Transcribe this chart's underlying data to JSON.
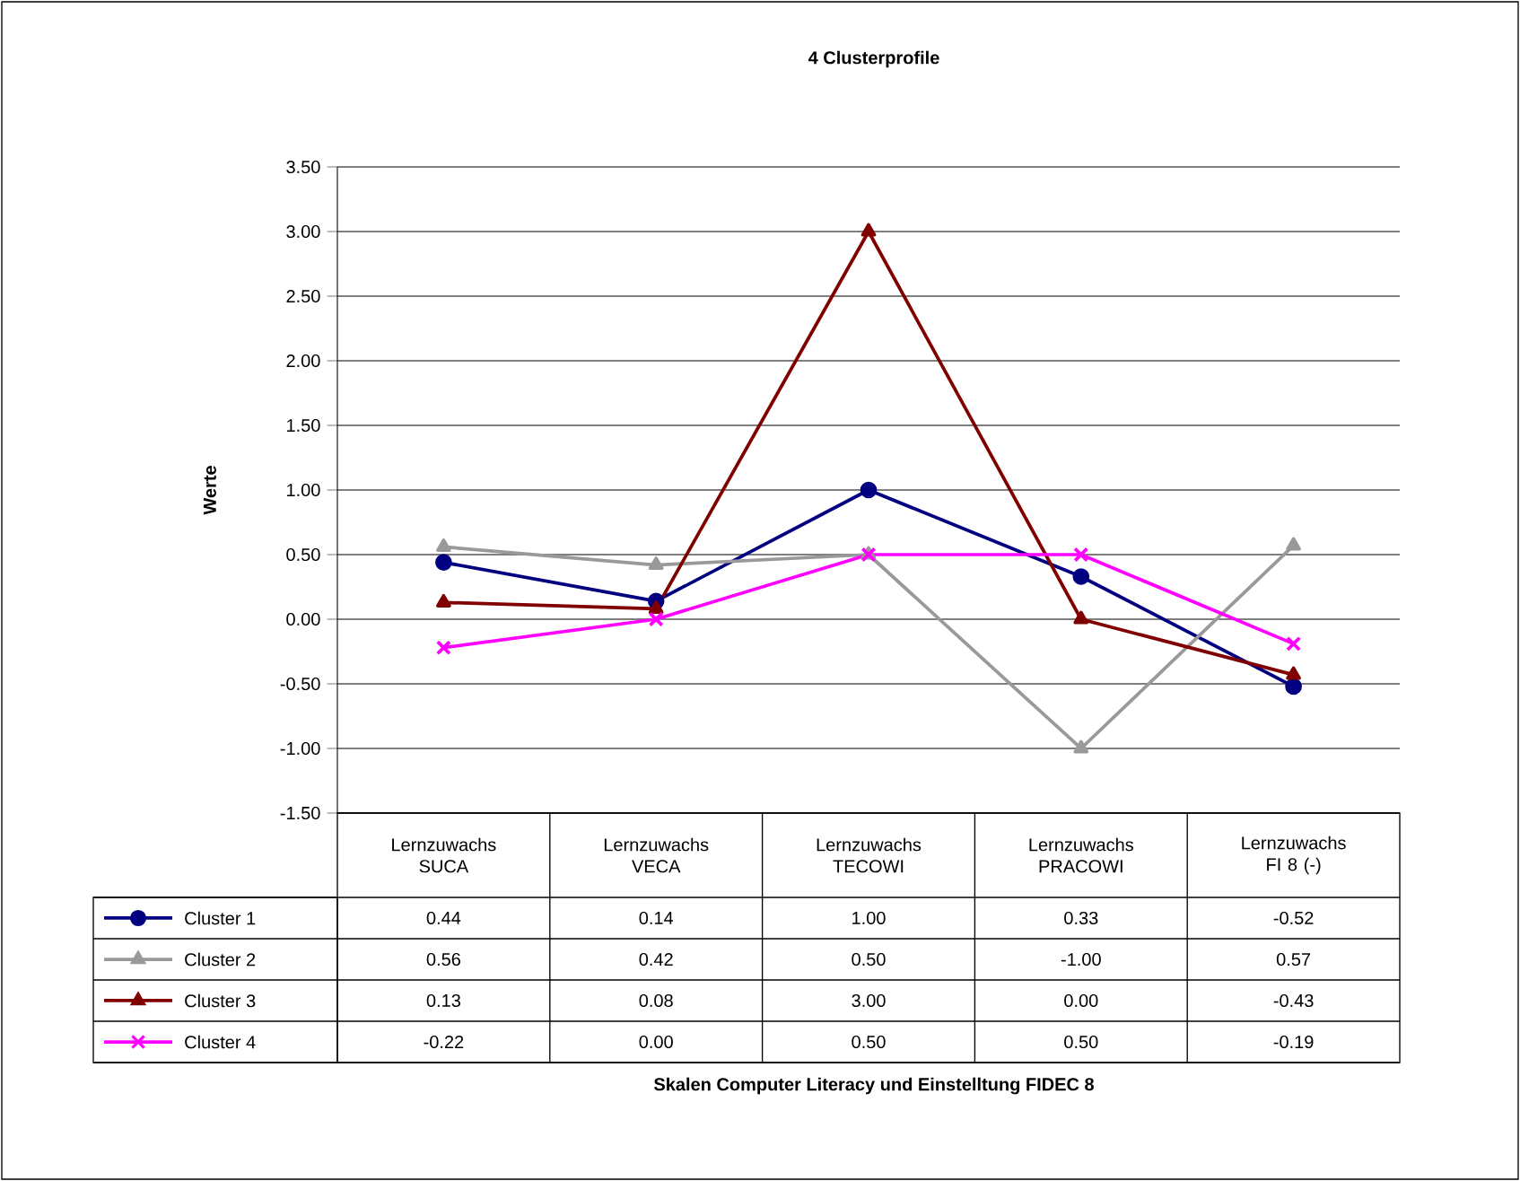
{
  "chart_data": {
    "type": "line",
    "title": "4 Clusterprofile",
    "annotations": [
      "Skalen Computer Literacy und Einstelltung FIDEC 8"
    ],
    "ylabel": "Werte",
    "categories": [
      "Lernzuwachs SUCA",
      "Lernzuwachs VECA",
      "Lernzuwachs TECOWI",
      "Lernzuwachs PRACOWI",
      "Lernzuwachs FI 8 (-)"
    ],
    "ylim": [
      -1.5,
      3.5
    ],
    "yticks": [
      {
        "value": -1.5,
        "label": "-1.50"
      },
      {
        "value": -1,
        "label": "-1.00"
      },
      {
        "value": -0.5,
        "label": "-0.50"
      },
      {
        "value": 0,
        "label": "0.00"
      },
      {
        "value": 0.5,
        "label": "0.50"
      },
      {
        "value": 1,
        "label": "1.00"
      },
      {
        "value": 1.5,
        "label": "1.50"
      },
      {
        "value": 2,
        "label": "2.00"
      },
      {
        "value": 2.5,
        "label": "2.50"
      },
      {
        "value": 3,
        "label": "3.00"
      },
      {
        "value": 3.5,
        "label": "3.50"
      }
    ],
    "grid": "y",
    "legend": "bottom left",
    "series": [
      {
        "name": "Cluster 1",
        "color": "#000080",
        "marker": "circle",
        "values": [
          0.44,
          0.14,
          1.0,
          0.33,
          -0.52
        ],
        "value_labels": [
          "0.44",
          "0.14",
          "1.00",
          "0.33",
          "-0.52"
        ]
      },
      {
        "name": "Cluster 2",
        "color": "#999999",
        "marker": "triangle",
        "values": [
          0.56,
          0.42,
          0.5,
          -1.0,
          0.57
        ],
        "value_labels": [
          "0.56",
          "0.42",
          "0.50",
          "-1.00",
          "0.57"
        ]
      },
      {
        "name": "Cluster 3",
        "color": "#800000",
        "marker": "triangle",
        "values": [
          0.13,
          0.08,
          3.0,
          0.0,
          -0.43
        ],
        "value_labels": [
          "0.13",
          "0.08",
          "3.00",
          "0.00",
          "-0.43"
        ]
      },
      {
        "name": "Cluster 4",
        "color": "#ff00ff",
        "marker": "cross",
        "values": [
          -0.22,
          0.0,
          0.5,
          0.5,
          -0.19
        ],
        "value_labels": [
          "-0.22",
          "0.00",
          "0.50",
          "0.50",
          "-0.19"
        ]
      }
    ]
  }
}
